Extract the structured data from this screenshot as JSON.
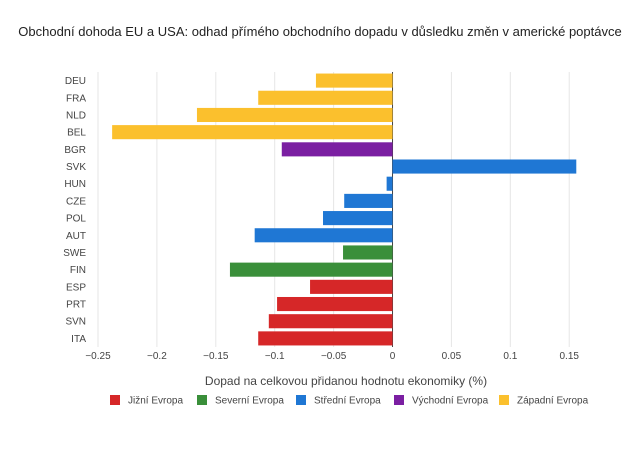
{
  "chart_data": {
    "type": "bar",
    "orientation": "horizontal",
    "title": "Obchodní dohoda EU a USA: odhad přímého obchodního dopadu v důsledku změn v americké poptávce",
    "xlabel": "Dopad na celkovou přidanou hodnotu ekonomiky (%)",
    "ylabel": "",
    "xlim": [
      -0.25,
      0.16
    ],
    "xticks": [
      -0.25,
      -0.2,
      -0.15,
      -0.1,
      -0.05,
      0,
      0.05,
      0.1,
      0.15
    ],
    "xtick_labels": [
      "−0.25",
      "−0.2",
      "−0.15",
      "−0.1",
      "−0.05",
      "0",
      "0.05",
      "0.1",
      "0.15"
    ],
    "grid": true,
    "legend_position": "bottom",
    "groups": [
      {
        "name": "Jižní Evropa",
        "color": "#d62728"
      },
      {
        "name": "Severní Evropa",
        "color": "#3a8f3a"
      },
      {
        "name": "Střední Evropa",
        "color": "#1f77d4"
      },
      {
        "name": "Východní Evropa",
        "color": "#7b1fa2"
      },
      {
        "name": "Západní Evropa",
        "color": "#fbc02d"
      }
    ],
    "categories": [
      "DEU",
      "FRA",
      "NLD",
      "BEL",
      "BGR",
      "SVK",
      "HUN",
      "CZE",
      "POL",
      "AUT",
      "SWE",
      "FIN",
      "ESP",
      "PRT",
      "SVN",
      "ITA"
    ],
    "values": [
      -0.065,
      -0.114,
      -0.166,
      -0.238,
      -0.094,
      0.156,
      -0.005,
      -0.041,
      -0.059,
      -0.117,
      -0.042,
      -0.138,
      -0.07,
      -0.098,
      -0.105,
      -0.114
    ],
    "group_of_category": [
      "Západní Evropa",
      "Západní Evropa",
      "Západní Evropa",
      "Západní Evropa",
      "Východní Evropa",
      "Střední Evropa",
      "Střední Evropa",
      "Střední Evropa",
      "Střední Evropa",
      "Střední Evropa",
      "Severní Evropa",
      "Severní Evropa",
      "Jižní Evropa",
      "Jižní Evropa",
      "Jižní Evropa",
      "Jižní Evropa"
    ]
  }
}
